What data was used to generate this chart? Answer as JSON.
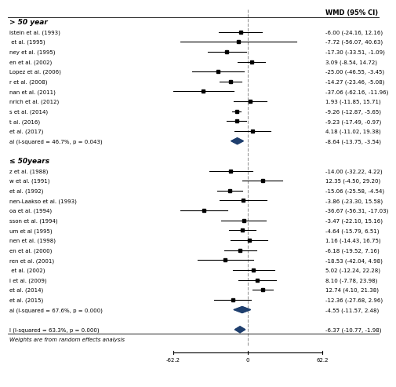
{
  "xlim": [
    -62.2,
    62.2
  ],
  "col_header": "WMD (95% CI)",
  "group1_label": "> 50 year",
  "group2_label": "≤ 50years",
  "group1_studies": [
    {
      "label": "istein et al. (1993)",
      "effect": -6.0,
      "ci_lo": -24.16,
      "ci_hi": 12.16,
      "wmd_text": "-6.00 (-24.16, 12.16)"
    },
    {
      "label": " et al. (1995)",
      "effect": -7.72,
      "ci_lo": -56.07,
      "ci_hi": 40.63,
      "wmd_text": "-7.72 (-56.07, 40.63)"
    },
    {
      "label": "ney et al. (1995)",
      "effect": -17.3,
      "ci_lo": -33.51,
      "ci_hi": -1.09,
      "wmd_text": "-17.30 (-33.51, -1.09)"
    },
    {
      "label": "en et al. (2002)",
      "effect": 3.09,
      "ci_lo": -8.54,
      "ci_hi": 14.72,
      "wmd_text": "3.09 (-8.54, 14.72)"
    },
    {
      "label": "Lopez et al. (2006)",
      "effect": -25.0,
      "ci_lo": -46.55,
      "ci_hi": -3.45,
      "wmd_text": "-25.00 (-46.55, -3.45)"
    },
    {
      "label": "r et al. (2008)",
      "effect": -14.27,
      "ci_lo": -23.46,
      "ci_hi": -5.08,
      "wmd_text": "-14.27 (-23.46, -5.08)"
    },
    {
      "label": "nan et al. (2011)",
      "effect": -37.06,
      "ci_lo": -62.16,
      "ci_hi": -11.96,
      "wmd_text": "-37.06 (-62.16, -11.96)"
    },
    {
      "label": "nrich et al. (2012)",
      "effect": 1.93,
      "ci_lo": -11.85,
      "ci_hi": 15.71,
      "wmd_text": "1.93 (-11.85, 15.71)"
    },
    {
      "label": "s et al. (2014)",
      "effect": -9.26,
      "ci_lo": -12.87,
      "ci_hi": -5.65,
      "wmd_text": "-9.26 (-12.87, -5.65)"
    },
    {
      "label": "t al. (2016)",
      "effect": -9.23,
      "ci_lo": -17.49,
      "ci_hi": -0.97,
      "wmd_text": "-9.23 (-17.49, -0.97)"
    },
    {
      "label": "et al. (2017)",
      "effect": 4.18,
      "ci_lo": -11.02,
      "ci_hi": 19.38,
      "wmd_text": "4.18 (-11.02, 19.38)"
    },
    {
      "label": "al (I-squared = 46.7%, p = 0.043)",
      "effect": -8.64,
      "ci_lo": -13.75,
      "ci_hi": -3.54,
      "wmd_text": "-8.64 (-13.75, -3.54)",
      "is_summary": true
    }
  ],
  "group2_studies": [
    {
      "label": "z et al. (1988)",
      "effect": -14.0,
      "ci_lo": -32.22,
      "ci_hi": 4.22,
      "wmd_text": "-14.00 (-32.22, 4.22)"
    },
    {
      "label": "w et al. (1991)",
      "effect": 12.35,
      "ci_lo": -4.5,
      "ci_hi": 29.2,
      "wmd_text": "12.35 (-4.50, 29.20)"
    },
    {
      "label": "et al. (1992)",
      "effect": -15.06,
      "ci_lo": -25.58,
      "ci_hi": -4.54,
      "wmd_text": "-15.06 (-25.58, -4.54)"
    },
    {
      "label": "nen-Laakso et al. (1993)",
      "effect": -3.86,
      "ci_lo": -23.3,
      "ci_hi": 15.58,
      "wmd_text": "-3.86 (-23.30, 15.58)"
    },
    {
      "label": "oa et al. (1994)",
      "effect": -36.67,
      "ci_lo": -56.31,
      "ci_hi": -17.03,
      "wmd_text": "-36.67 (-56.31, -17.03)"
    },
    {
      "label": "sson et al. (1994)",
      "effect": -3.47,
      "ci_lo": -22.1,
      "ci_hi": 15.16,
      "wmd_text": "-3.47 (-22.10, 15.16)"
    },
    {
      "label": "um et al (1995)",
      "effect": -4.64,
      "ci_lo": -15.79,
      "ci_hi": 6.51,
      "wmd_text": "-4.64 (-15.79, 6.51)"
    },
    {
      "label": "nen et al. (1998)",
      "effect": 1.16,
      "ci_lo": -14.43,
      "ci_hi": 16.75,
      "wmd_text": "1.16 (-14.43, 16.75)"
    },
    {
      "label": "en et al. (2000)",
      "effect": -6.18,
      "ci_lo": -19.52,
      "ci_hi": 7.16,
      "wmd_text": "-6.18 (-19.52, 7.16)"
    },
    {
      "label": "ren et al. (2001)",
      "effect": -18.53,
      "ci_lo": -42.04,
      "ci_hi": 4.98,
      "wmd_text": "-18.53 (-42.04, 4.98)"
    },
    {
      "label": " et al. (2002)",
      "effect": 5.02,
      "ci_lo": -12.24,
      "ci_hi": 22.28,
      "wmd_text": "5.02 (-12.24, 22.28)"
    },
    {
      "label": "i et al. (2009)",
      "effect": 8.1,
      "ci_lo": -7.78,
      "ci_hi": 23.98,
      "wmd_text": "8.10 (-7.78, 23.98)"
    },
    {
      "label": "et al. (2014)",
      "effect": 12.74,
      "ci_lo": 4.1,
      "ci_hi": 21.38,
      "wmd_text": "12.74 (4.10, 21.38)"
    },
    {
      "label": "et al. (2015)",
      "effect": -12.36,
      "ci_lo": -27.68,
      "ci_hi": 2.96,
      "wmd_text": "-12.36 (-27.68, 2.96)"
    },
    {
      "label": "al (I-squared = 67.6%, p = 0.000)",
      "effect": -4.55,
      "ci_lo": -11.57,
      "ci_hi": 2.48,
      "wmd_text": "-4.55 (-11.57, 2.48)",
      "is_summary": true
    }
  ],
  "overall": {
    "label": "l (I-squared = 63.3%, p = 0.000)",
    "effect": -6.37,
    "ci_lo": -10.77,
    "ci_hi": -1.98,
    "wmd_text": "-6.37 (-10.77, -1.98)"
  },
  "footnote": "Weights are from random effects analysis",
  "diamond_color": "#1f3f6e",
  "bg_color": "#ffffff"
}
